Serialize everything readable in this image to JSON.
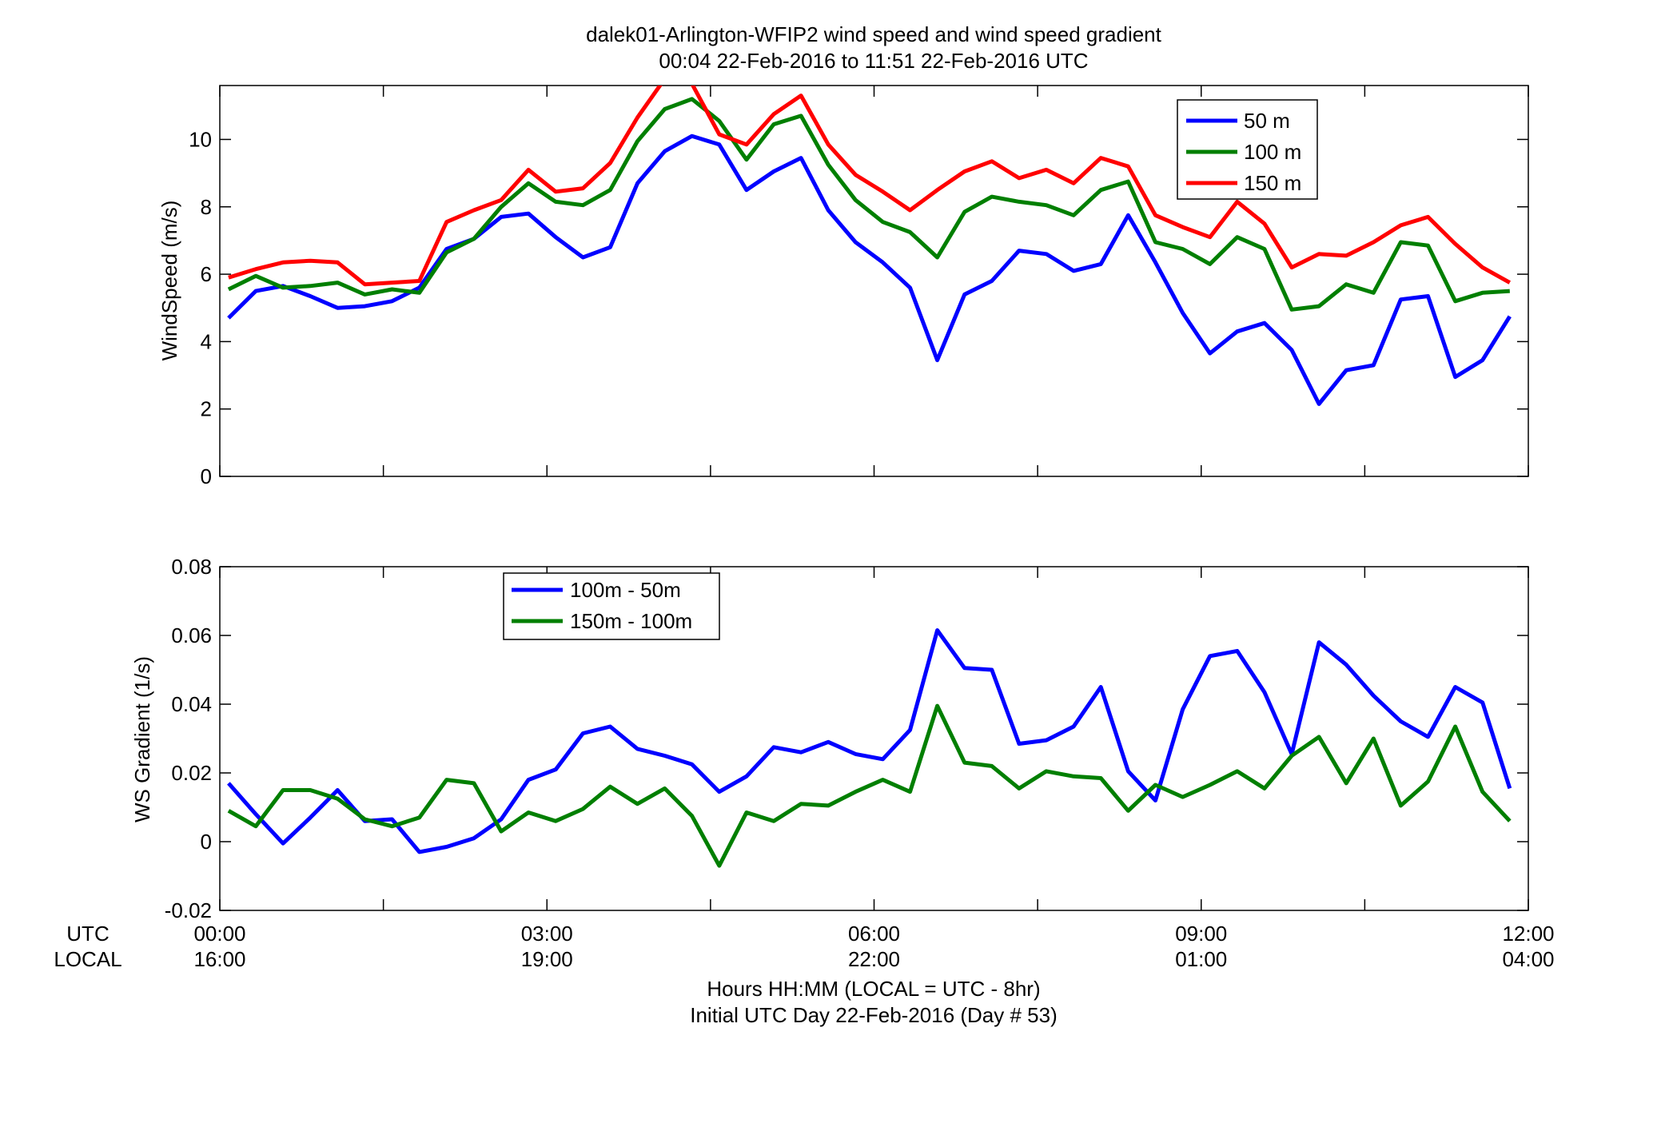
{
  "title": {
    "line1": "dalek01-Arlington-WFIP2  wind speed and wind speed gradient",
    "line2": "00:04 22-Feb-2016 to 11:51 22-Feb-2016  UTC"
  },
  "xaxis": {
    "utc_row_label": "UTC",
    "local_row_label": "LOCAL",
    "utc_ticks": [
      "00:00",
      "03:00",
      "06:00",
      "09:00",
      "12:00"
    ],
    "local_ticks": [
      "16:00",
      "19:00",
      "22:00",
      "01:00",
      "04:00"
    ],
    "label_line1": "Hours HH:MM  (LOCAL = UTC - 8hr)",
    "label_line2": "Initial UTC Day 22-Feb-2016 (Day # 53)"
  },
  "chart_data": [
    {
      "type": "line",
      "ylabel": "WindSpeed (m/s)",
      "xlim": [
        0,
        12
      ],
      "ylim": [
        0,
        11.6
      ],
      "yticks": [
        0,
        2,
        4,
        6,
        8,
        10
      ],
      "ytick_labels": [
        "0",
        "2",
        "4",
        "6",
        "8",
        "10"
      ],
      "legend_position": "top-right",
      "x": [
        0.08,
        0.33,
        0.58,
        0.83,
        1.08,
        1.33,
        1.58,
        1.83,
        2.08,
        2.33,
        2.58,
        2.83,
        3.08,
        3.33,
        3.58,
        3.83,
        4.08,
        4.33,
        4.58,
        4.83,
        5.08,
        5.33,
        5.58,
        5.83,
        6.08,
        6.33,
        6.58,
        6.83,
        7.08,
        7.33,
        7.58,
        7.83,
        8.08,
        8.33,
        8.58,
        8.83,
        9.08,
        9.33,
        9.58,
        9.83,
        10.08,
        10.33,
        10.58,
        10.83,
        11.08,
        11.33,
        11.58,
        11.83
      ],
      "series": [
        {
          "name": "50 m",
          "color": "#0000ff",
          "values": [
            4.7,
            5.5,
            5.65,
            5.35,
            5.0,
            5.05,
            5.2,
            5.6,
            6.75,
            7.05,
            7.7,
            7.8,
            7.1,
            6.5,
            6.8,
            8.7,
            9.65,
            10.1,
            9.85,
            8.5,
            9.05,
            9.45,
            7.9,
            6.95,
            6.35,
            5.6,
            3.45,
            5.4,
            5.8,
            6.7,
            6.6,
            6.1,
            6.3,
            7.75,
            6.35,
            4.85,
            3.65,
            4.3,
            4.55,
            3.75,
            2.15,
            3.15,
            3.3,
            5.25,
            5.35,
            2.95,
            3.45,
            4.75
          ]
        },
        {
          "name": "100 m",
          "color": "#007f00",
          "values": [
            5.55,
            5.95,
            5.6,
            5.65,
            5.75,
            5.4,
            5.55,
            5.45,
            6.65,
            7.05,
            8.0,
            8.7,
            8.15,
            8.05,
            8.5,
            9.95,
            10.9,
            11.2,
            10.55,
            9.4,
            10.45,
            10.7,
            9.25,
            8.2,
            7.55,
            7.25,
            6.5,
            7.85,
            8.3,
            8.15,
            8.05,
            7.75,
            8.5,
            8.75,
            6.95,
            6.75,
            6.3,
            7.1,
            6.75,
            4.95,
            5.05,
            5.7,
            5.45,
            6.95,
            6.85,
            5.2,
            5.45,
            5.5
          ]
        },
        {
          "name": "150 m",
          "color": "#ff0000",
          "values": [
            5.9,
            6.15,
            6.35,
            6.4,
            6.35,
            5.7,
            5.75,
            5.8,
            7.55,
            7.9,
            8.2,
            9.1,
            8.45,
            8.55,
            9.3,
            10.65,
            11.8,
            11.65,
            10.15,
            9.85,
            10.75,
            11.3,
            9.85,
            8.95,
            8.45,
            7.9,
            8.5,
            9.05,
            9.35,
            8.85,
            9.1,
            8.7,
            9.45,
            9.2,
            7.75,
            7.4,
            7.1,
            8.15,
            7.5,
            6.2,
            6.6,
            6.55,
            6.95,
            7.45,
            7.7,
            6.9,
            6.2,
            5.75
          ]
        }
      ]
    },
    {
      "type": "line",
      "ylabel": "WS Gradient (1/s)",
      "xlim": [
        0,
        12
      ],
      "ylim": [
        -0.02,
        0.08
      ],
      "yticks": [
        -0.02,
        0,
        0.02,
        0.04,
        0.06,
        0.08
      ],
      "ytick_labels": [
        "-0.02",
        "0",
        "0.02",
        "0.04",
        "0.06",
        "0.08"
      ],
      "legend_position": "top-left",
      "x": [
        0.08,
        0.33,
        0.58,
        0.83,
        1.08,
        1.33,
        1.58,
        1.83,
        2.08,
        2.33,
        2.58,
        2.83,
        3.08,
        3.33,
        3.58,
        3.83,
        4.08,
        4.33,
        4.58,
        4.83,
        5.08,
        5.33,
        5.58,
        5.83,
        6.08,
        6.33,
        6.58,
        6.83,
        7.08,
        7.33,
        7.58,
        7.83,
        8.08,
        8.33,
        8.58,
        8.83,
        9.08,
        9.33,
        9.58,
        9.83,
        10.08,
        10.33,
        10.58,
        10.83,
        11.08,
        11.33,
        11.58,
        11.83
      ],
      "series": [
        {
          "name": "100m - 50m",
          "color": "#0000ff",
          "values": [
            0.017,
            0.008,
            -0.0005,
            0.007,
            0.015,
            0.006,
            0.0065,
            -0.003,
            -0.0015,
            0.001,
            0.0065,
            0.018,
            0.021,
            0.0315,
            0.0335,
            0.027,
            0.025,
            0.0225,
            0.0145,
            0.019,
            0.0275,
            0.026,
            0.029,
            0.0255,
            0.024,
            0.0325,
            0.0615,
            0.0505,
            0.05,
            0.0285,
            0.0295,
            0.0335,
            0.045,
            0.0205,
            0.012,
            0.0385,
            0.054,
            0.0555,
            0.0435,
            0.0255,
            0.058,
            0.0515,
            0.0425,
            0.035,
            0.0305,
            0.045,
            0.0405,
            0.0155
          ]
        },
        {
          "name": "150m - 100m",
          "color": "#007f00",
          "values": [
            0.009,
            0.0045,
            0.015,
            0.015,
            0.0125,
            0.0065,
            0.0045,
            0.007,
            0.018,
            0.017,
            0.003,
            0.0085,
            0.006,
            0.0095,
            0.016,
            0.011,
            0.0155,
            0.0075,
            -0.007,
            0.0085,
            0.006,
            0.011,
            0.0105,
            0.0145,
            0.018,
            0.0145,
            0.0395,
            0.023,
            0.022,
            0.0155,
            0.0205,
            0.019,
            0.0185,
            0.009,
            0.0165,
            0.013,
            0.0165,
            0.0205,
            0.0155,
            0.025,
            0.0305,
            0.017,
            0.03,
            0.0105,
            0.0175,
            0.0335,
            0.0145,
            0.006
          ]
        }
      ]
    }
  ]
}
